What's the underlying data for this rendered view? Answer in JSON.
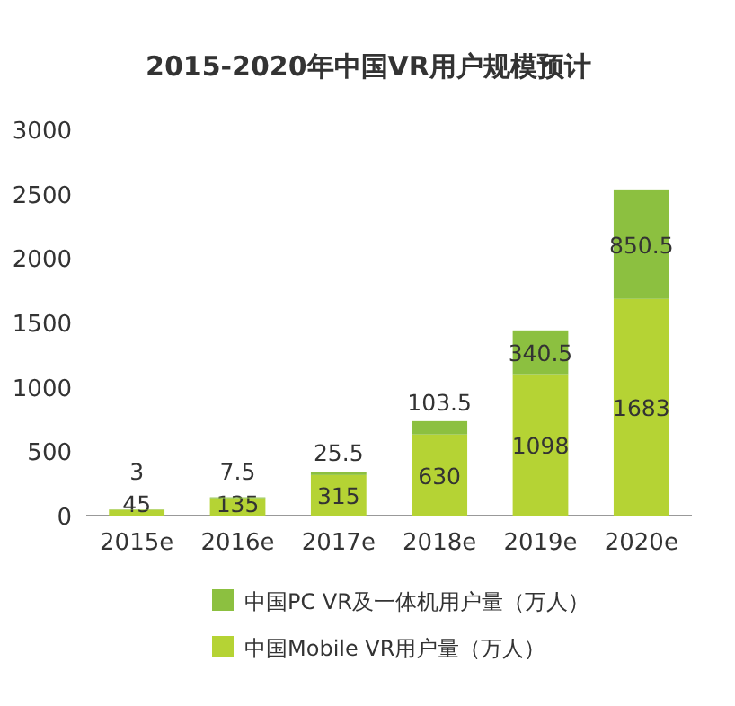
{
  "chart_data": {
    "type": "bar",
    "title": "2015-2020年中国VR用户规模预计",
    "stacked": true,
    "data_labels": true,
    "legend": "bottom",
    "grid": false,
    "categories": [
      "2015e",
      "2016e",
      "2017e",
      "2018e",
      "2019e",
      "2020e"
    ],
    "ylim": [
      0,
      3000
    ],
    "yticks": [
      0,
      500,
      1000,
      1500,
      2000,
      2500,
      3000
    ],
    "series": [
      {
        "name": "中国Mobile VR用户量（万人）",
        "color": "#b5d334",
        "values": [
          45,
          135,
          315,
          630,
          1098,
          1683
        ]
      },
      {
        "name": "中国PC VR及一体机用户量（万人）",
        "color": "#8cc040",
        "values": [
          3,
          7.5,
          25.5,
          103.5,
          340.5,
          850.5
        ]
      }
    ]
  }
}
